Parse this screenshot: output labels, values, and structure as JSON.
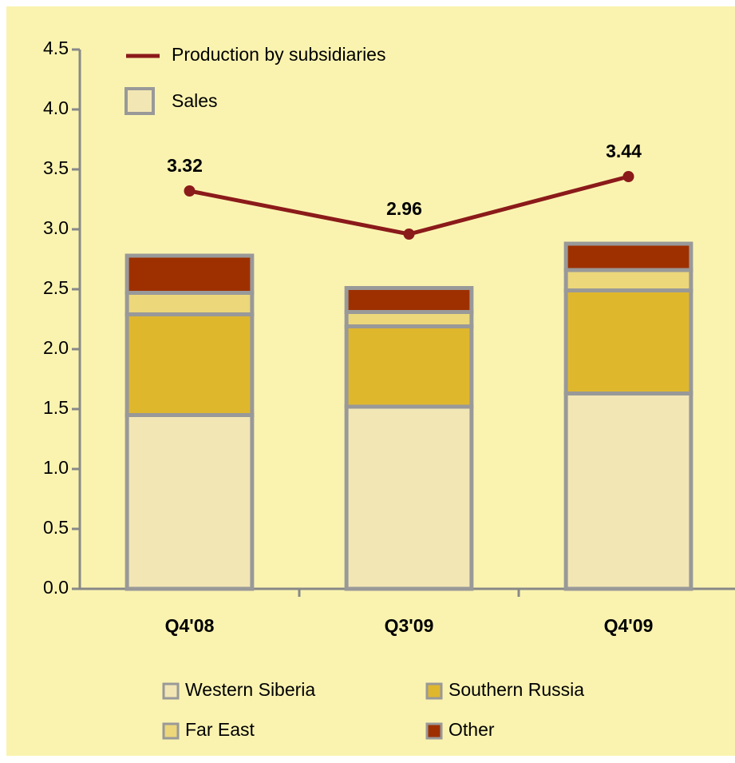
{
  "chart_data": {
    "type": "bar",
    "stacked": true,
    "categories": [
      "Q4'08",
      "Q3'09",
      "Q4'09"
    ],
    "series": [
      {
        "name": "Western Siberia",
        "color": "#f2e6b5",
        "values": [
          1.45,
          1.52,
          1.63
        ]
      },
      {
        "name": "Southern Russia",
        "color": "#dfb72d",
        "values": [
          0.84,
          0.67,
          0.86
        ]
      },
      {
        "name": "Far East",
        "color": "#ecd77a",
        "values": [
          0.18,
          0.12,
          0.17
        ]
      },
      {
        "name": "Other",
        "color": "#9e3000",
        "values": [
          0.31,
          0.2,
          0.22
        ]
      }
    ],
    "line": {
      "name": "Production by subsidiaries",
      "color": "#8b1a1a",
      "values": [
        3.32,
        2.96,
        3.44
      ]
    },
    "sales_legend": {
      "label": "Sales",
      "color": "#f2e6b5"
    },
    "ylim": [
      0,
      4.5
    ],
    "yticks": [
      {
        "value": 0,
        "label": "0.0"
      },
      0.5,
      {
        "value": 1,
        "label": "1.0"
      },
      1.5,
      {
        "value": 2,
        "label": "2.0"
      },
      2.5,
      {
        "value": 3,
        "label": "3.0"
      },
      3.5,
      {
        "value": 4,
        "label": "4.0"
      },
      4.5
    ]
  }
}
